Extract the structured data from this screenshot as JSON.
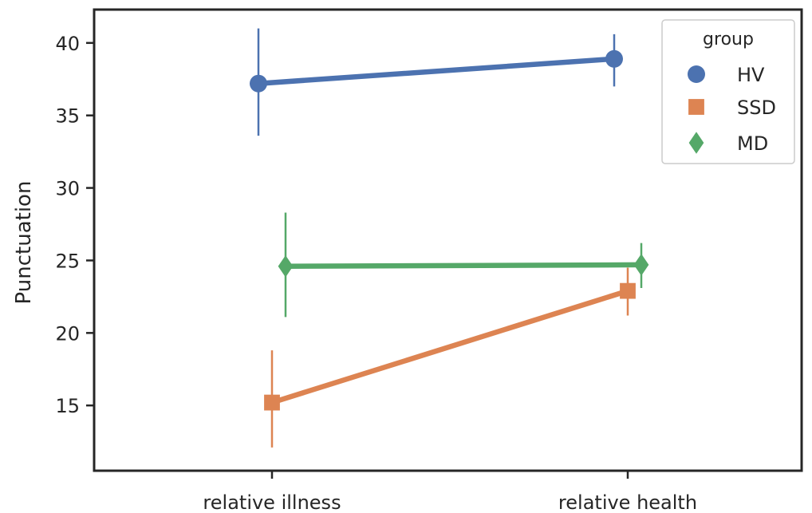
{
  "chart_data": {
    "type": "line",
    "xlabel": "",
    "ylabel": "Punctuation",
    "categories": [
      "relative illness",
      "relative health"
    ],
    "yticks": [
      15,
      20,
      25,
      30,
      35,
      40
    ],
    "ylim": [
      10.5,
      42.3
    ],
    "legend": {
      "title": "group",
      "placement": "top-right"
    },
    "grid": false,
    "series": [
      {
        "name": "HV",
        "color": "#4c72b0",
        "marker": "circle",
        "values": [
          37.2,
          38.9
        ],
        "err_low": [
          33.6,
          37.0
        ],
        "err_high": [
          41.0,
          40.6
        ]
      },
      {
        "name": "SSD",
        "color": "#dd8452",
        "marker": "square",
        "values": [
          15.2,
          22.9
        ],
        "err_low": [
          12.1,
          21.2
        ],
        "err_high": [
          18.8,
          24.5
        ]
      },
      {
        "name": "MD",
        "color": "#55a868",
        "marker": "diamond",
        "values": [
          24.6,
          24.7
        ],
        "err_low": [
          21.1,
          23.1
        ],
        "err_high": [
          28.3,
          26.2
        ]
      }
    ]
  }
}
